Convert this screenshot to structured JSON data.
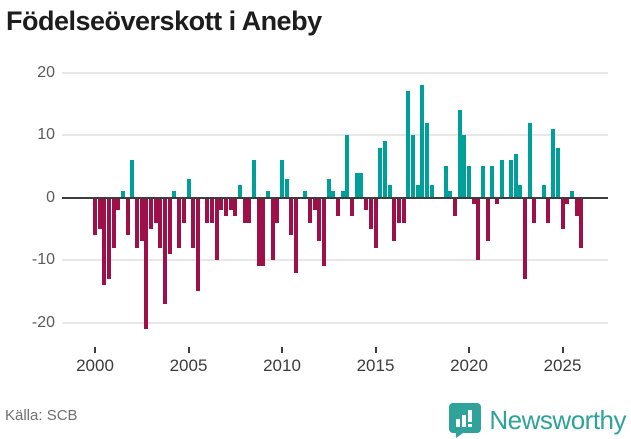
{
  "title": "Födelseöverskott i Aneby",
  "source": "Källa: SCB",
  "brand": {
    "name": "Newsworthy",
    "icon": "bar-chart-speech-bubble-badge"
  },
  "colors": {
    "positive": "#00a09a",
    "negative": "#9e1148",
    "grid": "#e7e7e7",
    "zero_axis": "#3d3d3d",
    "brand_teal": "#2fa39a",
    "title_text": "#1d1d1d",
    "tick_text": "#3c3c3c",
    "ylabel_text": "#5b5b5b",
    "source_text": "#707070"
  },
  "chart_data": {
    "type": "bar",
    "title": "Födelseöverskott i Aneby",
    "xlabel": "",
    "ylabel": "",
    "unit": "quarters",
    "start_year": 2000,
    "start_quarter": 1,
    "frequency": "quarterly",
    "grid": true,
    "ylim": [
      -23,
      21
    ],
    "yticks": [
      20,
      10,
      0,
      -10,
      -20
    ],
    "xticks": [
      2000,
      2005,
      2010,
      2015,
      2020,
      2025
    ],
    "values": [
      -6,
      -5,
      -14,
      -13,
      -8,
      -2,
      1,
      -6,
      6,
      -8,
      -7,
      -21,
      -5,
      -4,
      -8,
      -17,
      -9,
      1,
      -8,
      -4,
      3,
      -8,
      -15,
      0,
      -4,
      -4,
      -10,
      -2,
      -3,
      -2,
      -3,
      2,
      -4,
      -4,
      6,
      -11,
      -11,
      1,
      -10,
      -4,
      6,
      3,
      -6,
      -12,
      0,
      1,
      -4,
      -2,
      -7,
      -11,
      3,
      1,
      -3,
      1,
      10,
      -3,
      4,
      4,
      -2,
      -5,
      -8,
      8,
      9,
      2,
      -7,
      -4,
      -4,
      17,
      10,
      2,
      18,
      12,
      2,
      0,
      0,
      5,
      1,
      -3,
      14,
      10,
      5,
      -1,
      -10,
      5,
      -7,
      5,
      -1,
      6,
      0,
      6,
      7,
      2,
      -13,
      12,
      -4,
      0,
      2,
      -4,
      11,
      8,
      -5,
      -1,
      1,
      -3,
      -8
    ]
  }
}
